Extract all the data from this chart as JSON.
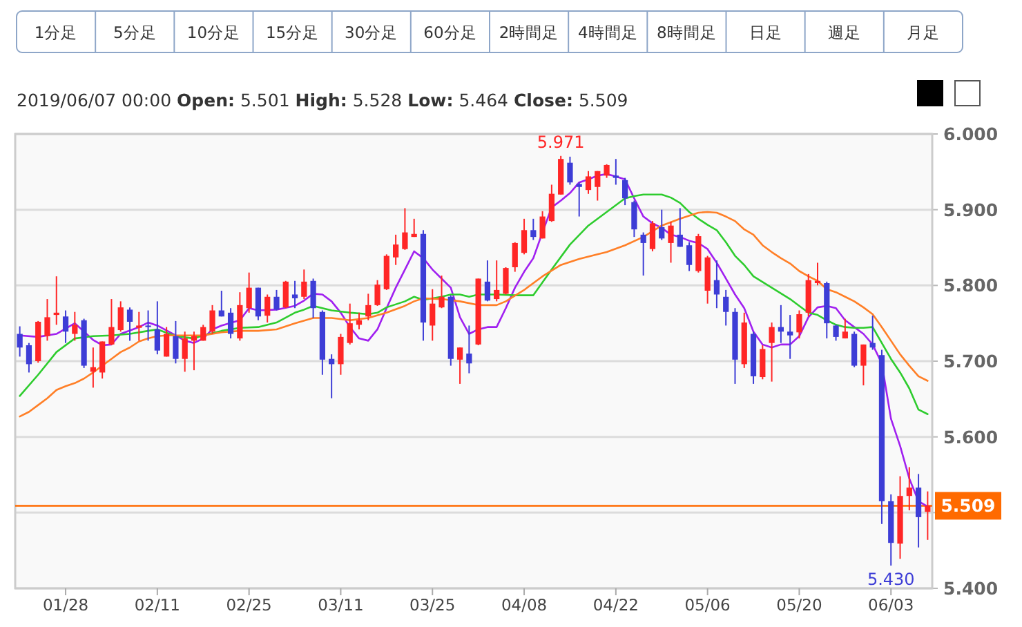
{
  "chart_data": {
    "type": "candlestick",
    "subtitle": "2019/06/07 00:00   Open: 5.501   High: 5.528   Low: 5.464   Close: 5.509",
    "annotations": [
      "1分足",
      "5分足",
      "10分足",
      "15分足",
      "30分足",
      "60分足",
      "2時間足",
      "4時間足",
      "8時間足",
      "日足",
      "週足",
      "月足",
      {
        "text": "5.971",
        "y": 5.971
      },
      {
        "text": "5.430",
        "y": 5.43
      }
    ],
    "categories": [
      null,
      null,
      null,
      null,
      null,
      "01/28",
      null,
      null,
      null,
      null,
      null,
      null,
      null,
      null,
      null,
      "02/11",
      null,
      null,
      null,
      null,
      null,
      null,
      null,
      null,
      null,
      "02/25",
      null,
      null,
      null,
      null,
      null,
      null,
      null,
      null,
      null,
      "03/11",
      null,
      null,
      null,
      null,
      null,
      null,
      null,
      null,
      null,
      "03/25",
      null,
      null,
      null,
      null,
      null,
      null,
      null,
      null,
      null,
      "04/08",
      null,
      null,
      null,
      null,
      null,
      null,
      null,
      null,
      null,
      "04/22",
      null,
      null,
      null,
      null,
      null,
      null,
      null,
      null,
      null,
      "05/06",
      null,
      null,
      null,
      null,
      null,
      null,
      null,
      null,
      null,
      "05/20",
      null,
      null,
      null,
      null,
      null,
      null,
      null,
      null,
      null,
      "06/03",
      null,
      null,
      null,
      null
    ],
    "ylim": [
      5.4,
      6.0
    ],
    "yticks": [
      {
        "value": 5.4,
        "label": "5.400"
      },
      {
        "value": 5.5,
        "label": null
      },
      {
        "value": 5.6,
        "label": "5.600"
      },
      {
        "value": 5.7,
        "label": "5.700"
      },
      {
        "value": 5.8,
        "label": "5.800"
      },
      {
        "value": 5.9,
        "label": "5.900"
      },
      {
        "value": 6.0,
        "label": "6.000"
      }
    ],
    "grid": "y",
    "ref_lines": [
      {
        "axis": "y",
        "value": 5.509,
        "label": "5.509",
        "color": "#ff6a00"
      }
    ],
    "series": [
      {
        "type": "line",
        "color": "#a020f0",
        "values": [
          5.734,
          null,
          5.732,
          null,
          5.736,
          null,
          5.75,
          null,
          5.728,
          5.721,
          5.722,
          5.736,
          null,
          5.745,
          5.751,
          5.747,
          null,
          5.734,
          5.727,
          5.724,
          5.73,
          5.742,
          5.747,
          null,
          5.754,
          5.77,
          5.767,
          null,
          5.768,
          null,
          5.773,
          5.78,
          5.789,
          5.788,
          5.779,
          5.764,
          5.745,
          5.73,
          5.727,
          5.742,
          5.77,
          5.797,
          5.821,
          5.845,
          5.836,
          5.821,
          5.809,
          5.797,
          5.758,
          5.736,
          5.742,
          5.745,
          5.745,
          5.77,
          5.797,
          5.818,
          5.836,
          5.87,
          5.903,
          5.912,
          5.922,
          5.936,
          5.94,
          5.945,
          5.947,
          5.944,
          5.94,
          5.915,
          5.891,
          5.882,
          5.876,
          5.867,
          5.864,
          5.859,
          5.856,
          5.848,
          5.83,
          5.809,
          5.788,
          5.77,
          5.739,
          5.722,
          5.718,
          5.722,
          5.722,
          5.733,
          5.758,
          5.771,
          5.773,
          5.77,
          5.754,
          5.745,
          5.736,
          5.722,
          5.697,
          5.624,
          5.588,
          5.545,
          5.515,
          5.508
        ]
      },
      {
        "type": "line",
        "color": "#2ecc2e",
        "values": [
          5.654,
          null,
          5.682,
          null,
          5.712,
          null,
          5.73,
          null,
          5.733,
          null,
          5.734,
          null,
          5.736,
          null,
          5.74,
          5.742,
          null,
          5.733,
          null,
          5.73,
          5.734,
          null,
          5.74,
          null,
          5.744,
          null,
          5.745,
          null,
          5.751,
          null,
          5.764,
          5.768,
          5.773,
          5.77,
          5.767,
          null,
          5.764,
          null,
          5.762,
          5.764,
          5.771,
          null,
          5.779,
          5.785,
          5.781,
          null,
          5.785,
          5.788,
          5.788,
          5.785,
          5.788,
          null,
          5.788,
          null,
          5.787,
          null,
          5.787,
          null,
          5.821,
          null,
          5.854,
          null,
          5.879,
          null,
          5.897,
          null,
          5.915,
          5.918,
          5.92,
          null,
          5.92,
          5.916,
          5.909,
          5.897,
          5.888,
          5.88,
          5.873,
          5.857,
          5.839,
          5.827,
          5.812,
          null,
          5.797,
          null,
          5.782,
          5.773,
          5.764,
          5.761,
          5.754,
          5.748,
          5.745,
          5.744,
          5.744,
          5.745,
          5.724,
          5.703,
          5.685,
          5.664,
          5.636,
          5.63
        ]
      },
      {
        "type": "line",
        "color": "#ff7f27",
        "values": [
          5.627,
          5.633,
          5.642,
          5.651,
          5.662,
          5.667,
          5.671,
          5.677,
          5.685,
          5.694,
          5.703,
          5.712,
          5.718,
          5.726,
          5.73,
          5.733,
          5.734,
          null,
          5.734,
          null,
          5.734,
          null,
          5.738,
          null,
          5.74,
          null,
          5.74,
          null,
          5.742,
          null,
          5.75,
          null,
          5.757,
          null,
          5.757,
          null,
          5.754,
          null,
          5.757,
          null,
          5.764,
          null,
          5.773,
          5.779,
          5.783,
          null,
          5.782,
          null,
          5.779,
          null,
          5.774,
          null,
          5.774,
          5.779,
          null,
          5.794,
          null,
          5.812,
          null,
          5.827,
          null,
          5.835,
          null,
          5.841,
          5.844,
          null,
          5.853,
          null,
          5.864,
          null,
          5.879,
          null,
          5.888,
          null,
          5.896,
          5.897,
          5.896,
          5.891,
          5.885,
          5.874,
          5.867,
          5.853,
          5.844,
          5.836,
          5.829,
          5.819,
          5.812,
          5.806,
          5.795,
          5.791,
          5.785,
          5.779,
          5.771,
          5.762,
          5.745,
          5.727,
          5.709,
          5.694,
          5.68,
          5.674
        ]
      },
      {
        "colors": [
          "#3d3dd6",
          "#3d3dd6",
          "#ff2626",
          "#ff2626",
          "#ff2626",
          "#3d3dd6",
          "#ff2626",
          "#3d3dd6",
          "#ff2626",
          "#ff2626",
          "#ff2626",
          "#ff2626",
          "#3d3dd6",
          "#ff2626",
          "#3d3dd6",
          "#3d3dd6",
          "#ff2626",
          "#3d3dd6",
          "#ff2626",
          "#ff2626",
          "#ff2626",
          "#ff2626",
          "#3d3dd6",
          "#3d3dd6",
          "#ff2626",
          "#ff2626",
          "#3d3dd6",
          "#ff2626",
          "#3d3dd6",
          "#ff2626",
          "#3d3dd6",
          "#ff2626",
          "#3d3dd6",
          "#3d3dd6",
          "#3d3dd6",
          "#ff2626",
          "#ff2626",
          "#ff2626",
          "#ff2626",
          "#ff2626",
          "#ff2626",
          "#ff2626",
          "#ff2626",
          "#ff2626",
          "#3d3dd6",
          "#ff2626",
          "#ff2626",
          "#3d3dd6",
          "#ff2626",
          "#3d3dd6",
          "#ff2626",
          "#3d3dd6",
          "#ff2626",
          "#ff2626",
          "#ff2626",
          "#ff2626",
          "#3d3dd6",
          "#ff2626",
          "#ff2626",
          "#ff2626",
          "#3d3dd6",
          "#3d3dd6",
          "#ff2626",
          "#ff2626",
          "#ff2626",
          "#3d3dd6",
          "#3d3dd6",
          "#3d3dd6",
          "#3d3dd6",
          "#ff2626",
          "#3d3dd6",
          "#ff2626",
          "#3d3dd6",
          "#3d3dd6",
          "#ff2626",
          "#ff2626",
          "#3d3dd6",
          "#3d3dd6",
          "#3d3dd6",
          "#ff2626",
          "#3d3dd6",
          "#ff2626",
          "#ff2626",
          "#3d3dd6",
          "#3d3dd6",
          "#ff2626",
          "#ff2626",
          "#ff2626",
          "#3d3dd6",
          "#3d3dd6",
          "#ff2626",
          "#3d3dd6",
          "#ff2626",
          "#3d3dd6",
          "#3d3dd6",
          "#3d3dd6",
          "#ff2626",
          "#ff2626",
          "#3d3dd6",
          "#ff2626"
        ],
        "ohlc": [
          [
            5.736,
            5.746,
            5.706,
            5.718
          ],
          [
            5.721,
            5.724,
            5.685,
            5.696
          ],
          [
            5.7,
            5.753,
            5.698,
            5.752
          ],
          [
            5.733,
            5.782,
            5.727,
            5.758
          ],
          [
            5.761,
            5.812,
            5.748,
            5.764
          ],
          [
            5.759,
            5.767,
            5.724,
            5.739
          ],
          [
            5.736,
            5.765,
            5.727,
            5.748
          ],
          [
            5.754,
            5.756,
            5.691,
            5.694
          ],
          [
            5.686,
            5.718,
            5.665,
            5.692
          ],
          [
            5.685,
            5.726,
            5.677,
            5.726
          ],
          [
            5.722,
            5.782,
            5.721,
            5.745
          ],
          [
            5.741,
            5.779,
            5.739,
            5.771
          ],
          [
            5.768,
            5.771,
            5.727,
            5.752
          ],
          [
            5.744,
            5.765,
            5.727,
            5.747
          ],
          [
            5.747,
            5.767,
            5.727,
            5.745
          ],
          [
            5.742,
            5.779,
            5.709,
            5.714
          ],
          [
            5.706,
            5.745,
            5.706,
            5.736
          ],
          [
            5.733,
            5.753,
            5.697,
            5.703
          ],
          [
            5.703,
            5.739,
            5.686,
            5.73
          ],
          [
            5.727,
            5.739,
            5.688,
            5.733
          ],
          [
            5.727,
            5.748,
            5.727,
            5.745
          ],
          [
            5.739,
            5.774,
            5.736,
            5.767
          ],
          [
            5.767,
            5.793,
            5.759,
            5.759
          ],
          [
            5.764,
            5.77,
            5.73,
            5.736
          ],
          [
            5.73,
            5.791,
            5.727,
            5.774
          ],
          [
            5.77,
            5.817,
            5.764,
            5.797
          ],
          [
            5.797,
            5.797,
            5.754,
            5.759
          ],
          [
            5.76,
            5.788,
            5.751,
            5.785
          ],
          [
            5.785,
            5.794,
            5.767,
            5.768
          ],
          [
            5.771,
            5.806,
            5.77,
            5.805
          ],
          [
            5.788,
            5.806,
            5.77,
            5.783
          ],
          [
            5.785,
            5.821,
            5.782,
            5.805
          ],
          [
            5.806,
            5.809,
            5.757,
            5.77
          ],
          [
            5.765,
            5.767,
            5.682,
            5.702
          ],
          [
            5.703,
            5.709,
            5.651,
            5.696
          ],
          [
            5.696,
            5.736,
            5.682,
            5.732
          ],
          [
            5.724,
            5.776,
            5.722,
            5.75
          ],
          [
            5.748,
            5.764,
            5.742,
            5.754
          ],
          [
            5.759,
            5.789,
            5.754,
            5.774
          ],
          [
            5.774,
            5.807,
            5.773,
            5.801
          ],
          [
            5.795,
            5.841,
            5.794,
            5.839
          ],
          [
            5.837,
            5.867,
            5.827,
            5.854
          ],
          [
            5.848,
            5.902,
            5.847,
            5.87
          ],
          [
            5.864,
            5.888,
            5.864,
            5.868
          ],
          [
            5.868,
            5.873,
            5.727,
            5.751
          ],
          [
            5.747,
            5.795,
            5.727,
            5.776
          ],
          [
            5.771,
            5.813,
            5.77,
            5.785
          ],
          [
            5.785,
            5.787,
            5.694,
            5.703
          ],
          [
            5.702,
            5.718,
            5.67,
            5.718
          ],
          [
            5.71,
            5.747,
            5.684,
            5.697
          ],
          [
            5.722,
            5.809,
            5.721,
            5.809
          ],
          [
            5.805,
            5.833,
            5.779,
            5.78
          ],
          [
            5.782,
            5.833,
            5.779,
            5.794
          ],
          [
            5.789,
            5.824,
            5.788,
            5.823
          ],
          [
            5.824,
            5.857,
            5.818,
            5.856
          ],
          [
            5.843,
            5.888,
            5.841,
            5.873
          ],
          [
            5.873,
            5.888,
            5.86,
            5.864
          ],
          [
            5.862,
            5.898,
            5.862,
            5.891
          ],
          [
            5.885,
            5.933,
            5.884,
            5.921
          ],
          [
            5.92,
            5.971,
            5.92,
            5.967
          ],
          [
            5.962,
            5.97,
            5.933,
            5.936
          ],
          [
            5.934,
            5.936,
            5.891,
            5.93
          ],
          [
            5.926,
            5.951,
            5.921,
            5.944
          ],
          [
            5.93,
            5.951,
            5.912,
            5.951
          ],
          [
            5.945,
            5.96,
            5.942,
            5.959
          ],
          [
            5.945,
            5.967,
            5.933,
            5.942
          ],
          [
            5.939,
            5.942,
            5.906,
            5.915
          ],
          [
            5.91,
            5.912,
            5.864,
            5.874
          ],
          [
            5.867,
            5.87,
            5.813,
            5.856
          ],
          [
            5.848,
            5.885,
            5.845,
            5.882
          ],
          [
            5.877,
            5.9,
            5.86,
            5.862
          ],
          [
            5.856,
            5.884,
            5.83,
            5.879
          ],
          [
            5.867,
            5.902,
            5.851,
            5.851
          ],
          [
            5.853,
            5.857,
            5.819,
            5.827
          ],
          [
            5.819,
            5.868,
            5.817,
            5.865
          ],
          [
            5.793,
            5.839,
            5.776,
            5.837
          ],
          [
            5.807,
            5.833,
            5.77,
            5.788
          ],
          [
            5.785,
            5.794,
            5.747,
            5.765
          ],
          [
            5.765,
            5.77,
            5.67,
            5.702
          ],
          [
            5.696,
            5.764,
            5.691,
            5.751
          ],
          [
            5.736,
            5.739,
            5.67,
            5.68
          ],
          [
            5.679,
            5.721,
            5.676,
            5.716
          ],
          [
            5.724,
            5.751,
            5.673,
            5.745
          ],
          [
            5.745,
            5.774,
            5.724,
            5.739
          ],
          [
            5.739,
            5.761,
            5.703,
            5.734
          ],
          [
            5.738,
            5.767,
            5.73,
            5.762
          ],
          [
            5.764,
            5.815,
            5.759,
            5.807
          ],
          [
            5.803,
            5.83,
            5.8,
            5.806
          ],
          [
            5.803,
            5.805,
            5.73,
            5.75
          ],
          [
            5.747,
            5.748,
            5.727,
            5.732
          ],
          [
            5.73,
            5.756,
            5.73,
            5.739
          ],
          [
            5.736,
            5.739,
            5.692,
            5.694
          ],
          [
            5.694,
            5.722,
            5.668,
            5.722
          ],
          [
            5.724,
            5.76,
            5.715,
            5.718
          ],
          [
            5.708,
            5.715,
            5.485,
            5.515
          ],
          [
            5.515,
            5.524,
            5.43,
            5.46
          ],
          [
            5.459,
            5.548,
            5.439,
            5.522
          ],
          [
            5.522,
            5.56,
            5.503,
            5.533
          ],
          [
            5.533,
            5.551,
            5.454,
            5.494
          ],
          [
            5.501,
            5.528,
            5.464,
            5.509
          ]
        ]
      }
    ]
  }
}
